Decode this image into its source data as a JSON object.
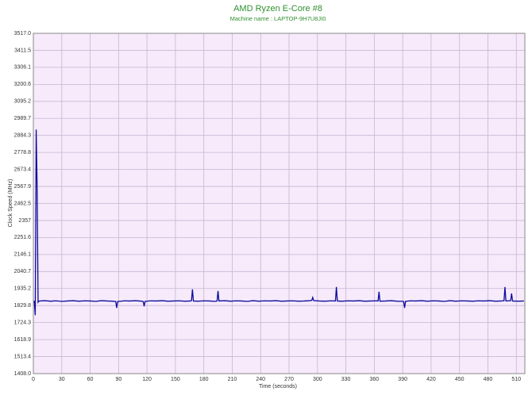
{
  "chart_data": {
    "type": "line",
    "title": "AMD Ryzen E-Core #8",
    "subtitle": "Machine name : LAPTOP-9H7U8JI0",
    "xlabel": "Time (seconds)",
    "ylabel": "Clock Speed (MHz)",
    "xlim": [
      0,
      519
    ],
    "ylim": [
      1408,
      3517
    ],
    "xticks": [
      0,
      30,
      60,
      90,
      120,
      150,
      180,
      210,
      240,
      270,
      300,
      330,
      360,
      390,
      420,
      450,
      480,
      510
    ],
    "yticks": [
      {
        "value": 1408,
        "label": "1408.0"
      },
      1513.4,
      1618.9,
      1724.3,
      1829.8,
      1935.2,
      2040.7,
      2146.1,
      2251.6,
      2357,
      2462.5,
      2567.9,
      2673.4,
      2778.8,
      2884.3,
      2989.7,
      3095.2,
      3200.6,
      3306.1,
      3411.5,
      {
        "value": 3517,
        "label": "3517.0"
      }
    ],
    "grid": true,
    "background": "#f6eafb",
    "series": [
      {
        "color": "#0b0b9c",
        "x": [
          0,
          1,
          2,
          3,
          4,
          5,
          6,
          12,
          18,
          24,
          30,
          36,
          42,
          48,
          54,
          60,
          66,
          72,
          78,
          84,
          87,
          88,
          89,
          96,
          102,
          108,
          114,
          116,
          117,
          118,
          124,
          130,
          136,
          142,
          148,
          154,
          160,
          166,
          167,
          168,
          169,
          174,
          180,
          186,
          192,
          194,
          195,
          196,
          202,
          208,
          214,
          220,
          226,
          232,
          238,
          244,
          250,
          256,
          262,
          268,
          274,
          280,
          286,
          292,
          294,
          295,
          296,
          302,
          308,
          314,
          319,
          320,
          321,
          326,
          332,
          338,
          344,
          350,
          356,
          362,
          364,
          365,
          366,
          372,
          378,
          384,
          390,
          391,
          392,
          393,
          398,
          404,
          410,
          416,
          422,
          428,
          434,
          440,
          446,
          452,
          458,
          464,
          470,
          476,
          482,
          488,
          494,
          497,
          498,
          499,
          504,
          505,
          506,
          512,
          518
        ],
        "values": [
          1858,
          1856,
          1770,
          2920,
          2560,
          1850,
          1858,
          1860,
          1857,
          1859,
          1856,
          1858,
          1860,
          1857,
          1859,
          1858,
          1856,
          1860,
          1858,
          1857,
          1855,
          1815,
          1855,
          1859,
          1858,
          1860,
          1857,
          1855,
          1825,
          1856,
          1859,
          1858,
          1860,
          1857,
          1858,
          1859,
          1857,
          1858,
          1860,
          1930,
          1858,
          1857,
          1859,
          1858,
          1856,
          1858,
          1920,
          1858,
          1860,
          1857,
          1859,
          1858,
          1856,
          1860,
          1857,
          1859,
          1858,
          1860,
          1857,
          1858,
          1859,
          1857,
          1858,
          1860,
          1862,
          1880,
          1860,
          1858,
          1857,
          1859,
          1858,
          1945,
          1858,
          1857,
          1859,
          1858,
          1860,
          1857,
          1858,
          1859,
          1858,
          1915,
          1857,
          1858,
          1860,
          1857,
          1856,
          1855,
          1815,
          1856,
          1859,
          1858,
          1860,
          1857,
          1859,
          1858,
          1856,
          1860,
          1857,
          1859,
          1858,
          1857,
          1859,
          1858,
          1860,
          1857,
          1858,
          1860,
          1945,
          1858,
          1860,
          1905,
          1858,
          1857,
          1858
        ]
      }
    ]
  }
}
